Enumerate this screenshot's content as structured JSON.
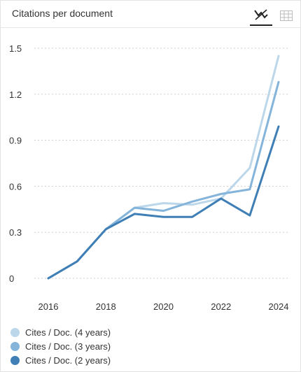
{
  "header": {
    "title": "Citations per document",
    "line_view_icon": "line-chart-icon",
    "table_view_icon": "table-icon"
  },
  "chart_data": {
    "type": "line",
    "title": "Citations per document",
    "x": [
      2016,
      2017,
      2018,
      2019,
      2020,
      2021,
      2022,
      2023,
      2024
    ],
    "xticks": [
      "2016",
      "2018",
      "2020",
      "2022",
      "2024"
    ],
    "yticks": [
      "0",
      "0.3",
      "0.6",
      "0.9",
      "1.2",
      "1.5"
    ],
    "ylim": [
      0,
      1.5
    ],
    "grid": true,
    "series": [
      {
        "name": "Cites / Doc. (4 years)",
        "color": "#bcd6ea",
        "values": [
          0.0,
          0.11,
          0.32,
          0.46,
          0.49,
          0.48,
          0.52,
          0.72,
          1.45
        ]
      },
      {
        "name": "Cites / Doc. (3 years)",
        "color": "#85b4da",
        "values": [
          0.0,
          0.11,
          0.32,
          0.46,
          0.44,
          0.5,
          0.55,
          0.58,
          1.28
        ]
      },
      {
        "name": "Cites / Doc. (2 years)",
        "color": "#3f7fb5",
        "values": [
          0.0,
          0.11,
          0.32,
          0.42,
          0.4,
          0.4,
          0.52,
          0.41,
          0.99
        ]
      }
    ],
    "legend_position": "bottom-left"
  }
}
